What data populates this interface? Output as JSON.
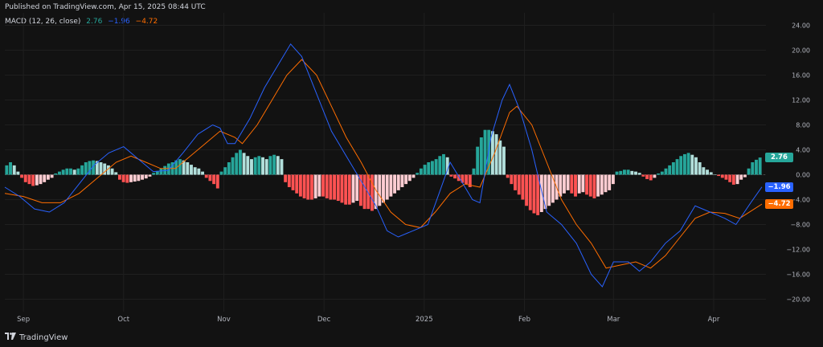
{
  "header": {
    "published": "Published on TradingView.com, Apr 15, 2025 08:44 UTC",
    "indicator_name": "MACD (12, 26, close)",
    "value_hist": "2.76",
    "value_macd": "−1.96",
    "value_signal": "−4.72"
  },
  "colors": {
    "background": "#121212",
    "macd_line": "#2962ff",
    "signal_line": "#ff6d00",
    "hist_pos_strong": "#26a69a",
    "hist_pos_weak": "#b2dfdb",
    "hist_neg_strong": "#ff5252",
    "hist_neg_weak": "#ffcdd2"
  },
  "footer": {
    "brand": "TradingView"
  },
  "chart_data": {
    "type": "line",
    "title": "MACD (12, 26, close)",
    "y_tick_labels": [
      "24.00",
      "20.00",
      "16.00",
      "12.00",
      "8.00",
      "4.00",
      "0.00",
      "−4.00",
      "−8.00",
      "−12.00",
      "−16.00",
      "−20.00"
    ],
    "y_ticks": [
      24,
      20,
      16,
      12,
      8,
      4,
      0,
      -4,
      -8,
      -12,
      -16,
      -20
    ],
    "ylim": [
      -22,
      26
    ],
    "x_labels": [
      "Sep",
      "Oct",
      "Nov",
      "Dec",
      "2025",
      "Feb",
      "Mar",
      "Apr"
    ],
    "x_label_positions": [
      5,
      32,
      59,
      86,
      113,
      140,
      164,
      191
    ],
    "x_range": [
      0,
      204
    ],
    "last_values": {
      "histogram": "2.76",
      "macd": "−1.96",
      "signal": "−4.72"
    },
    "series": [
      {
        "name": "MACD",
        "points": [
          [
            0,
            -2
          ],
          [
            4,
            -3.5
          ],
          [
            8,
            -5.5
          ],
          [
            12,
            -6
          ],
          [
            16,
            -4.5
          ],
          [
            20,
            -1.5
          ],
          [
            24,
            1.5
          ],
          [
            28,
            3.5
          ],
          [
            32,
            4.5
          ],
          [
            36,
            2.5
          ],
          [
            40,
            0.5
          ],
          [
            44,
            0.7
          ],
          [
            48,
            3.5
          ],
          [
            52,
            6.5
          ],
          [
            56,
            8
          ],
          [
            58,
            7.5
          ],
          [
            60,
            5
          ],
          [
            62,
            5
          ],
          [
            66,
            9
          ],
          [
            70,
            14
          ],
          [
            74,
            18
          ],
          [
            77,
            21
          ],
          [
            80,
            19
          ],
          [
            84,
            13
          ],
          [
            88,
            7
          ],
          [
            92,
            3
          ],
          [
            96,
            -1
          ],
          [
            100,
            -5
          ],
          [
            103,
            -9
          ],
          [
            106,
            -10
          ],
          [
            110,
            -9
          ],
          [
            114,
            -8
          ],
          [
            117,
            -3
          ],
          [
            120,
            2
          ],
          [
            123,
            -1
          ],
          [
            126,
            -4
          ],
          [
            128,
            -4.5
          ],
          [
            131,
            6
          ],
          [
            134,
            12
          ],
          [
            136,
            14.5
          ],
          [
            139,
            10
          ],
          [
            142,
            4
          ],
          [
            144,
            -1
          ],
          [
            146,
            -6
          ],
          [
            150,
            -8
          ],
          [
            154,
            -11
          ],
          [
            158,
            -16
          ],
          [
            161,
            -18
          ],
          [
            164,
            -14
          ],
          [
            168,
            -14
          ],
          [
            171,
            -15.5
          ],
          [
            174,
            -14
          ],
          [
            178,
            -11
          ],
          [
            182,
            -9
          ],
          [
            186,
            -5
          ],
          [
            190,
            -6
          ],
          [
            194,
            -7
          ],
          [
            197,
            -8
          ],
          [
            201,
            -4.5
          ],
          [
            204,
            -1.96
          ]
        ]
      },
      {
        "name": "Signal",
        "points": [
          [
            0,
            -3
          ],
          [
            5,
            -3.5
          ],
          [
            10,
            -4.5
          ],
          [
            15,
            -4.5
          ],
          [
            20,
            -3
          ],
          [
            25,
            -0.5
          ],
          [
            30,
            2
          ],
          [
            34,
            3
          ],
          [
            38,
            2
          ],
          [
            42,
            1
          ],
          [
            46,
            1
          ],
          [
            50,
            3
          ],
          [
            54,
            5
          ],
          [
            58,
            7
          ],
          [
            62,
            6
          ],
          [
            64,
            5
          ],
          [
            68,
            8
          ],
          [
            72,
            12
          ],
          [
            76,
            16
          ],
          [
            80,
            18.5
          ],
          [
            84,
            16
          ],
          [
            88,
            11
          ],
          [
            92,
            6
          ],
          [
            96,
            2
          ],
          [
            100,
            -2.5
          ],
          [
            104,
            -6
          ],
          [
            108,
            -8
          ],
          [
            112,
            -8.5
          ],
          [
            116,
            -6
          ],
          [
            120,
            -3
          ],
          [
            124,
            -1.5
          ],
          [
            128,
            -2
          ],
          [
            132,
            3.5
          ],
          [
            136,
            10
          ],
          [
            138,
            11
          ],
          [
            142,
            8
          ],
          [
            146,
            2
          ],
          [
            150,
            -4
          ],
          [
            154,
            -8
          ],
          [
            158,
            -11
          ],
          [
            162,
            -15
          ],
          [
            166,
            -14.5
          ],
          [
            170,
            -14
          ],
          [
            174,
            -15
          ],
          [
            178,
            -13
          ],
          [
            182,
            -10
          ],
          [
            186,
            -7
          ],
          [
            190,
            -6
          ],
          [
            194,
            -6.2
          ],
          [
            198,
            -7
          ],
          [
            204,
            -4.72
          ]
        ]
      },
      {
        "name": "Histogram",
        "values": [
          1.5,
          2,
          1.5,
          0.5,
          -0.5,
          -1.2,
          -1.5,
          -1.8,
          -1.7,
          -1.5,
          -1.2,
          -0.8,
          -0.5,
          0.2,
          0.5,
          0.8,
          1,
          1,
          0.8,
          1,
          1.5,
          2,
          2.2,
          2.3,
          2.2,
          2,
          1.8,
          1.5,
          1,
          0.4,
          -0.8,
          -1.2,
          -1.3,
          -1.2,
          -1.1,
          -1,
          -0.8,
          -0.6,
          -0.3,
          0.3,
          0.6,
          1,
          1.4,
          1.8,
          2,
          2.3,
          2.5,
          2.3,
          2,
          1.6,
          1.2,
          1,
          0.5,
          -0.5,
          -1,
          -1.5,
          -2.2,
          0.5,
          1.2,
          2,
          2.8,
          3.5,
          4,
          3.5,
          3,
          2.5,
          2.8,
          3,
          2.8,
          2.5,
          3,
          3.2,
          3,
          2.5,
          -1.2,
          -2,
          -2.5,
          -3,
          -3.5,
          -3.8,
          -4,
          -4,
          -3.8,
          -3.5,
          -3.5,
          -3.8,
          -4,
          -4,
          -4.2,
          -4.5,
          -4.8,
          -4.8,
          -4.5,
          -4.2,
          -5,
          -5.5,
          -5.5,
          -5.8,
          -5.5,
          -5,
          -4.5,
          -4,
          -3.5,
          -3,
          -2.5,
          -2,
          -1.5,
          -1,
          -0.5,
          0.3,
          1,
          1.6,
          2,
          2.2,
          2.5,
          3,
          3.3,
          2.8,
          -0.3,
          -0.6,
          -1,
          -1.3,
          -1.5,
          -2,
          1,
          4.5,
          6,
          7.2,
          7.2,
          7,
          6.5,
          5.5,
          4.5,
          -0.5,
          -1.5,
          -2.5,
          -3.2,
          -4,
          -5,
          -5.7,
          -6.2,
          -6.5,
          -6,
          -5.5,
          -5,
          -4.5,
          -4,
          -3.5,
          -3,
          -2.5,
          -3,
          -3.5,
          -3,
          -2.8,
          -3.2,
          -3.5,
          -3.8,
          -3.5,
          -3.2,
          -2.8,
          -2.5,
          -1.5,
          0.5,
          0.6,
          0.8,
          0.8,
          0.6,
          0.5,
          0.3,
          -0.3,
          -0.7,
          -0.9,
          -0.5,
          0.2,
          0.5,
          1,
          1.5,
          2,
          2.5,
          3,
          3.3,
          3.5,
          3.2,
          2.8,
          2,
          1.2,
          0.8,
          0.4,
          0,
          -0.2,
          -0.5,
          -0.8,
          -1.2,
          -1.6,
          -1.5,
          -0.8,
          -0.4,
          1,
          2,
          2.4,
          2.76
        ]
      }
    ]
  }
}
